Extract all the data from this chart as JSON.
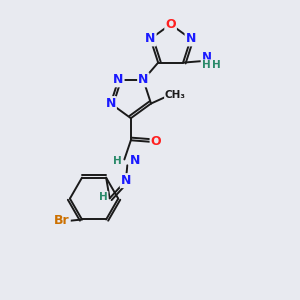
{
  "background_color": "#e8eaf0",
  "bond_color": "#1a1a1a",
  "colors": {
    "N": "#1a1aff",
    "O": "#ff2020",
    "Br": "#cc7000",
    "C": "#1a1a1a",
    "H": "#2a8a6a"
  }
}
